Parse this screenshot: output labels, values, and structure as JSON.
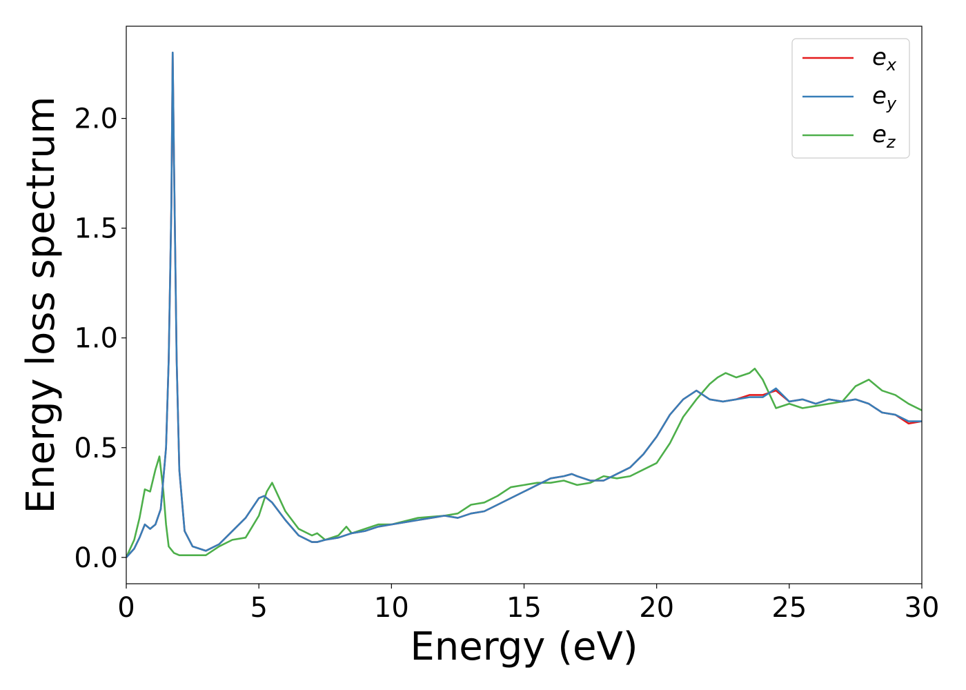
{
  "chart_data": {
    "type": "line",
    "xlabel": "Energy (eV)",
    "ylabel": "Energy loss spectrum",
    "xlim": [
      0,
      30
    ],
    "ylim": [
      -0.12,
      2.42
    ],
    "xticks": [
      0,
      5,
      10,
      15,
      20,
      25,
      30
    ],
    "xtick_labels": [
      "0",
      "5",
      "10",
      "15",
      "20",
      "25",
      "30"
    ],
    "yticks": [
      0.0,
      0.5,
      1.0,
      1.5,
      2.0
    ],
    "ytick_labels": [
      "0.0",
      "0.5",
      "1.0",
      "1.5",
      "2.0"
    ],
    "grid": false,
    "legend_position": "top-right",
    "series": [
      {
        "name": "e_x",
        "legend_base": "e",
        "legend_sub": "x",
        "color": "#e41a1c",
        "x": [
          0,
          0.3,
          0.5,
          0.7,
          0.9,
          1.1,
          1.3,
          1.5,
          1.6,
          1.7,
          1.75,
          1.8,
          1.9,
          2.0,
          2.2,
          2.5,
          3.0,
          3.5,
          4.0,
          4.5,
          5.0,
          5.2,
          5.5,
          6.0,
          6.5,
          7.0,
          7.2,
          7.5,
          8.0,
          8.5,
          9.0,
          9.5,
          10,
          11,
          12,
          12.5,
          13,
          13.5,
          14,
          15,
          15.5,
          16,
          16.5,
          16.8,
          17,
          17.5,
          18,
          18.5,
          19,
          19.5,
          20,
          20.5,
          21,
          21.5,
          22,
          22.5,
          23,
          23.5,
          24,
          24.5,
          25,
          25.5,
          26,
          26.5,
          27,
          27.5,
          28,
          28.5,
          29,
          29.5,
          30
        ],
        "y": [
          0,
          0.04,
          0.09,
          0.15,
          0.13,
          0.15,
          0.22,
          0.5,
          0.9,
          1.6,
          2.3,
          1.8,
          0.9,
          0.4,
          0.12,
          0.05,
          0.03,
          0.06,
          0.12,
          0.18,
          0.27,
          0.28,
          0.25,
          0.17,
          0.1,
          0.07,
          0.07,
          0.08,
          0.09,
          0.11,
          0.12,
          0.14,
          0.15,
          0.17,
          0.19,
          0.18,
          0.2,
          0.21,
          0.24,
          0.3,
          0.33,
          0.36,
          0.37,
          0.38,
          0.37,
          0.35,
          0.35,
          0.38,
          0.41,
          0.47,
          0.55,
          0.65,
          0.72,
          0.76,
          0.72,
          0.71,
          0.72,
          0.74,
          0.74,
          0.76,
          0.71,
          0.72,
          0.7,
          0.72,
          0.71,
          0.72,
          0.7,
          0.66,
          0.65,
          0.61,
          0.62
        ]
      },
      {
        "name": "e_y",
        "legend_base": "e",
        "legend_sub": "y",
        "color": "#377eb8",
        "x": [
          0,
          0.3,
          0.5,
          0.7,
          0.9,
          1.1,
          1.3,
          1.5,
          1.6,
          1.7,
          1.75,
          1.8,
          1.9,
          2.0,
          2.2,
          2.5,
          3.0,
          3.5,
          4.0,
          4.5,
          5.0,
          5.2,
          5.5,
          6.0,
          6.5,
          7.0,
          7.2,
          7.5,
          8.0,
          8.5,
          9.0,
          9.5,
          10,
          11,
          12,
          12.5,
          13,
          13.5,
          14,
          15,
          15.5,
          16,
          16.5,
          16.8,
          17,
          17.5,
          18,
          18.5,
          19,
          19.5,
          20,
          20.5,
          21,
          21.5,
          22,
          22.5,
          23,
          23.5,
          24,
          24.5,
          25,
          25.5,
          26,
          26.5,
          27,
          27.5,
          28,
          28.5,
          29,
          29.5,
          30
        ],
        "y": [
          0,
          0.04,
          0.09,
          0.15,
          0.13,
          0.15,
          0.22,
          0.5,
          0.9,
          1.6,
          2.3,
          1.8,
          0.9,
          0.4,
          0.12,
          0.05,
          0.03,
          0.06,
          0.12,
          0.18,
          0.27,
          0.28,
          0.25,
          0.17,
          0.1,
          0.07,
          0.07,
          0.08,
          0.09,
          0.11,
          0.12,
          0.14,
          0.15,
          0.17,
          0.19,
          0.18,
          0.2,
          0.21,
          0.24,
          0.3,
          0.33,
          0.36,
          0.37,
          0.38,
          0.37,
          0.35,
          0.35,
          0.38,
          0.41,
          0.47,
          0.55,
          0.65,
          0.72,
          0.76,
          0.72,
          0.71,
          0.72,
          0.73,
          0.73,
          0.77,
          0.71,
          0.72,
          0.7,
          0.72,
          0.71,
          0.72,
          0.7,
          0.66,
          0.65,
          0.62,
          0.62
        ]
      },
      {
        "name": "e_z",
        "legend_base": "e",
        "legend_sub": "z",
        "color": "#4daf4a",
        "x": [
          0,
          0.3,
          0.5,
          0.7,
          0.9,
          1.1,
          1.25,
          1.4,
          1.5,
          1.6,
          1.8,
          2.0,
          2.5,
          3.0,
          3.5,
          4.0,
          4.5,
          5.0,
          5.3,
          5.5,
          6.0,
          6.5,
          7.0,
          7.2,
          7.5,
          8.0,
          8.3,
          8.5,
          9.0,
          9.5,
          10,
          11,
          12,
          12.5,
          13,
          13.5,
          14,
          14.5,
          15,
          15.5,
          16,
          16.5,
          17,
          17.5,
          18,
          18.5,
          19,
          19.5,
          20,
          20.5,
          21,
          21.5,
          22,
          22.3,
          22.6,
          23,
          23.5,
          23.7,
          24,
          24.5,
          25,
          25.5,
          26,
          26.5,
          27,
          27.5,
          28,
          28.5,
          29,
          29.5,
          30
        ],
        "y": [
          0,
          0.08,
          0.18,
          0.31,
          0.3,
          0.4,
          0.46,
          0.3,
          0.15,
          0.05,
          0.02,
          0.01,
          0.01,
          0.01,
          0.05,
          0.08,
          0.09,
          0.19,
          0.3,
          0.34,
          0.21,
          0.13,
          0.1,
          0.11,
          0.08,
          0.1,
          0.14,
          0.11,
          0.13,
          0.15,
          0.15,
          0.18,
          0.19,
          0.2,
          0.24,
          0.25,
          0.28,
          0.32,
          0.33,
          0.34,
          0.34,
          0.35,
          0.33,
          0.34,
          0.37,
          0.36,
          0.37,
          0.4,
          0.43,
          0.52,
          0.64,
          0.72,
          0.79,
          0.82,
          0.84,
          0.82,
          0.84,
          0.86,
          0.81,
          0.68,
          0.7,
          0.68,
          0.69,
          0.7,
          0.71,
          0.78,
          0.81,
          0.76,
          0.74,
          0.7,
          0.67
        ]
      }
    ]
  }
}
